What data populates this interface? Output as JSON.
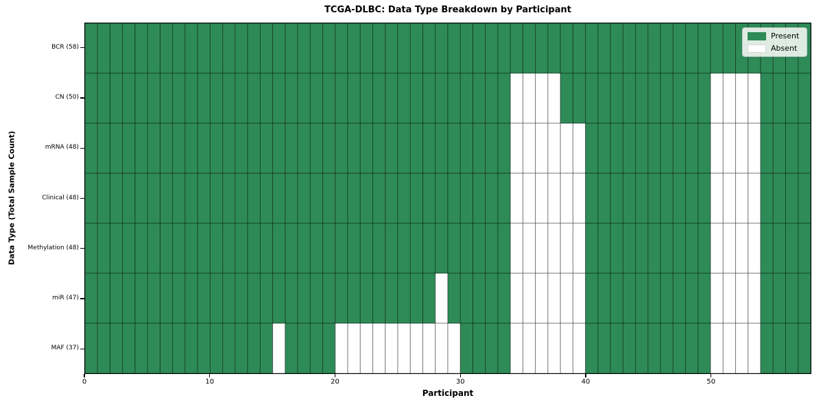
{
  "title": "TCGA-DLBC: Data Type Breakdown by Participant",
  "colors": {
    "present": "#2e8b57",
    "absent": "#ffffff",
    "grid_line": "rgba(0,0,0,0.42)",
    "spine": "#000000"
  },
  "legend": {
    "present_label": "Present",
    "absent_label": "Absent",
    "position": "upper right"
  },
  "chart_data": {
    "type": "heatmap",
    "title": "TCGA-DLBC: Data Type Breakdown by Participant",
    "xlabel": "Participant",
    "ylabel": "Data Type (Total Sample Count)",
    "n_participants": 58,
    "xlim": [
      0,
      58
    ],
    "x_ticks": [
      0,
      10,
      20,
      30,
      40,
      50
    ],
    "legend": [
      "Present",
      "Absent"
    ],
    "legend_position": "upper right",
    "rows": [
      {
        "label": "BCR (58)",
        "count": 58,
        "absent_participants": []
      },
      {
        "label": "CN (50)",
        "count": 50,
        "absent_participants": [
          34,
          35,
          36,
          37,
          50,
          51,
          52,
          53
        ]
      },
      {
        "label": "mRNA (48)",
        "count": 48,
        "absent_participants": [
          34,
          35,
          36,
          37,
          38,
          39,
          50,
          51,
          52,
          53
        ]
      },
      {
        "label": "Clinical (48)",
        "count": 48,
        "absent_participants": [
          34,
          35,
          36,
          37,
          38,
          39,
          50,
          51,
          52,
          53
        ]
      },
      {
        "label": "Methylation (48)",
        "count": 48,
        "absent_participants": [
          34,
          35,
          36,
          37,
          38,
          39,
          50,
          51,
          52,
          53
        ]
      },
      {
        "label": "miR (47)",
        "count": 47,
        "absent_participants": [
          28,
          34,
          35,
          36,
          37,
          38,
          39,
          50,
          51,
          52,
          53
        ]
      },
      {
        "label": "MAF (37)",
        "count": 37,
        "absent_participants": [
          15,
          20,
          21,
          22,
          23,
          24,
          25,
          26,
          27,
          28,
          29,
          34,
          35,
          36,
          37,
          38,
          39,
          50,
          51,
          52,
          53
        ]
      }
    ]
  }
}
